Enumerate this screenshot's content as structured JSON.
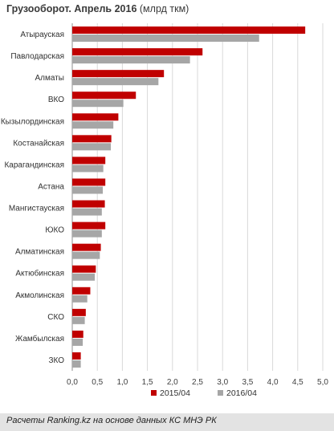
{
  "title_bold": "Грузооборот. Апрель 2016",
  "title_unit": "(млрд ткм)",
  "source": "Расчеты Ranking.kz на основе данных КС МНЭ РК",
  "colors": {
    "s2015": "#c00000",
    "s2016": "#a6a6a6",
    "grid": "#d9d9d9",
    "axis": "#8c8c8c",
    "footer": "#e3e3e3"
  },
  "chart_data": {
    "type": "bar",
    "orientation": "horizontal",
    "title": "Грузооборот. Апрель 2016 (млрд ткм)",
    "categories": [
      "Атырауская",
      "Павлодарская",
      "Алматы",
      "ВКО",
      "Кызылординская",
      "Костанайская",
      "Карагандинская",
      "Астана",
      "Мангистауская",
      "ЮКО",
      "Алматинская",
      "Актюбинская",
      "Акмолинская",
      "СКО",
      "Жамбылская",
      "ЗКО"
    ],
    "series": [
      {
        "name": "2015/04",
        "color": "#c00000",
        "values": [
          4.65,
          2.6,
          1.83,
          1.27,
          0.92,
          0.78,
          0.66,
          0.66,
          0.65,
          0.66,
          0.57,
          0.47,
          0.36,
          0.27,
          0.22,
          0.17
        ]
      },
      {
        "name": "2016/04",
        "color": "#a6a6a6",
        "values": [
          3.73,
          2.35,
          1.72,
          1.02,
          0.82,
          0.77,
          0.62,
          0.61,
          0.59,
          0.59,
          0.55,
          0.45,
          0.3,
          0.25,
          0.21,
          0.17
        ]
      }
    ],
    "xlim": [
      0,
      5
    ],
    "ticks": [
      "0,0",
      "0,5",
      "1,0",
      "1,5",
      "2,0",
      "2,5",
      "3,0",
      "3,5",
      "4,0",
      "4,5",
      "5,0"
    ],
    "grid": true,
    "legend": "bottom"
  }
}
